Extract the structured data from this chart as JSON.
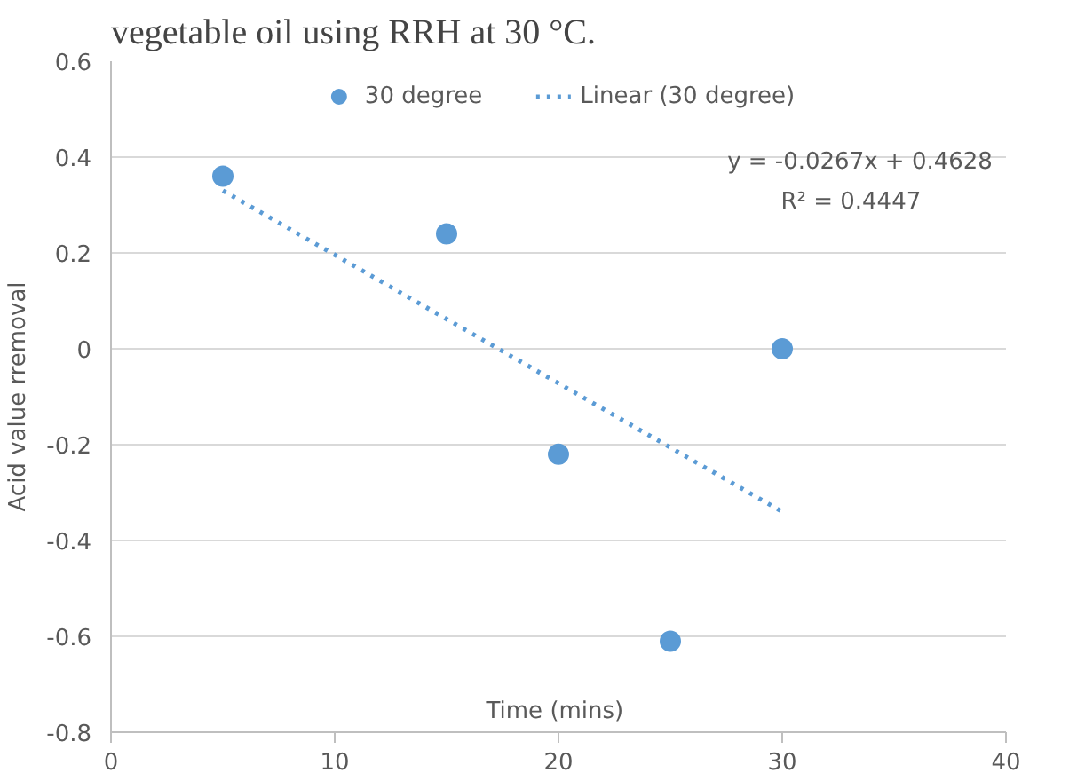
{
  "chart_data": {
    "type": "scatter",
    "title": "vegetable oil using RRH at 30 °C.",
    "xlabel": "Time  (mins)",
    "ylabel": "Acid value rremoval",
    "xlim": [
      0,
      40
    ],
    "xticks": [
      0,
      10,
      20,
      30,
      40
    ],
    "ylim": [
      -0.8,
      0.6
    ],
    "yticks": [
      -0.8,
      -0.6,
      -0.4,
      -0.2,
      0,
      0.2,
      0.4,
      0.6
    ],
    "grid": "y",
    "legend": "top",
    "series": [
      {
        "name": "30 degree",
        "marker": "circle",
        "color": "#5b9bd5",
        "x": [
          5,
          15,
          20,
          25,
          30
        ],
        "values": [
          0.36,
          0.24,
          -0.22,
          -0.61,
          0.0
        ]
      },
      {
        "name": "Linear (30 degree)",
        "type": "line",
        "line_style": "dotted",
        "color": "#5b9bd5",
        "x": [
          5,
          30
        ],
        "values": [
          0.33,
          -0.34
        ]
      }
    ],
    "annotations": [
      "y = -0.0267x + 0.4628",
      "R² = 0.4447"
    ]
  }
}
